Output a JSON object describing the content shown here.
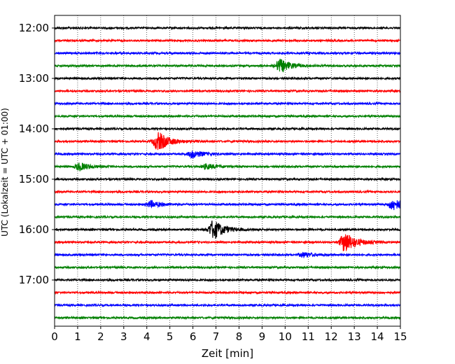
{
  "chart_data": {
    "type": "line",
    "subtype": "helicorder",
    "xlabel": "Zeit  [min]",
    "ylabel": "UTC (Lokalzeit = UTC + 01:00)",
    "xlim": [
      0,
      15
    ],
    "x_ticks": [
      "0",
      "1",
      "2",
      "3",
      "4",
      "5",
      "6",
      "7",
      "8",
      "9",
      "10",
      "11",
      "12",
      "13",
      "14",
      "15"
    ],
    "y_tick_labels": [
      "12:00",
      "13:00",
      "14:00",
      "15:00",
      "16:00",
      "17:00"
    ],
    "grid": "vertical dotted",
    "trace_colors": [
      "#000000",
      "#ff0000",
      "#0000ff",
      "#008000"
    ],
    "traces": [
      {
        "start": "12:00",
        "events": []
      },
      {
        "start": "12:15",
        "events": []
      },
      {
        "start": "12:30",
        "events": []
      },
      {
        "start": "12:45",
        "events": [
          {
            "t": 9.8,
            "amp": 0.5
          }
        ]
      },
      {
        "start": "13:00",
        "events": []
      },
      {
        "start": "13:15",
        "events": []
      },
      {
        "start": "13:30",
        "events": []
      },
      {
        "start": "13:45",
        "events": []
      },
      {
        "start": "14:00",
        "events": []
      },
      {
        "start": "14:15",
        "events": [
          {
            "t": 4.5,
            "amp": 0.75
          }
        ]
      },
      {
        "start": "14:30",
        "events": [
          {
            "t": 6.0,
            "amp": 0.3
          }
        ]
      },
      {
        "start": "14:45",
        "events": [
          {
            "t": 1.1,
            "amp": 0.3
          },
          {
            "t": 6.6,
            "amp": 0.2
          }
        ]
      },
      {
        "start": "15:00",
        "events": []
      },
      {
        "start": "15:15",
        "events": []
      },
      {
        "start": "15:30",
        "events": [
          {
            "t": 4.2,
            "amp": 0.25
          },
          {
            "t": 14.7,
            "amp": 0.45
          }
        ]
      },
      {
        "start": "15:45",
        "events": []
      },
      {
        "start": "16:00",
        "events": [
          {
            "t": 6.9,
            "amp": 0.75
          }
        ]
      },
      {
        "start": "16:15",
        "events": [
          {
            "t": 12.6,
            "amp": 0.8
          }
        ]
      },
      {
        "start": "16:30",
        "events": [
          {
            "t": 10.8,
            "amp": 0.2
          }
        ]
      },
      {
        "start": "16:45",
        "events": []
      },
      {
        "start": "17:00",
        "events": []
      },
      {
        "start": "17:15",
        "events": []
      },
      {
        "start": "17:30",
        "events": []
      },
      {
        "start": "17:45",
        "events": []
      }
    ]
  }
}
